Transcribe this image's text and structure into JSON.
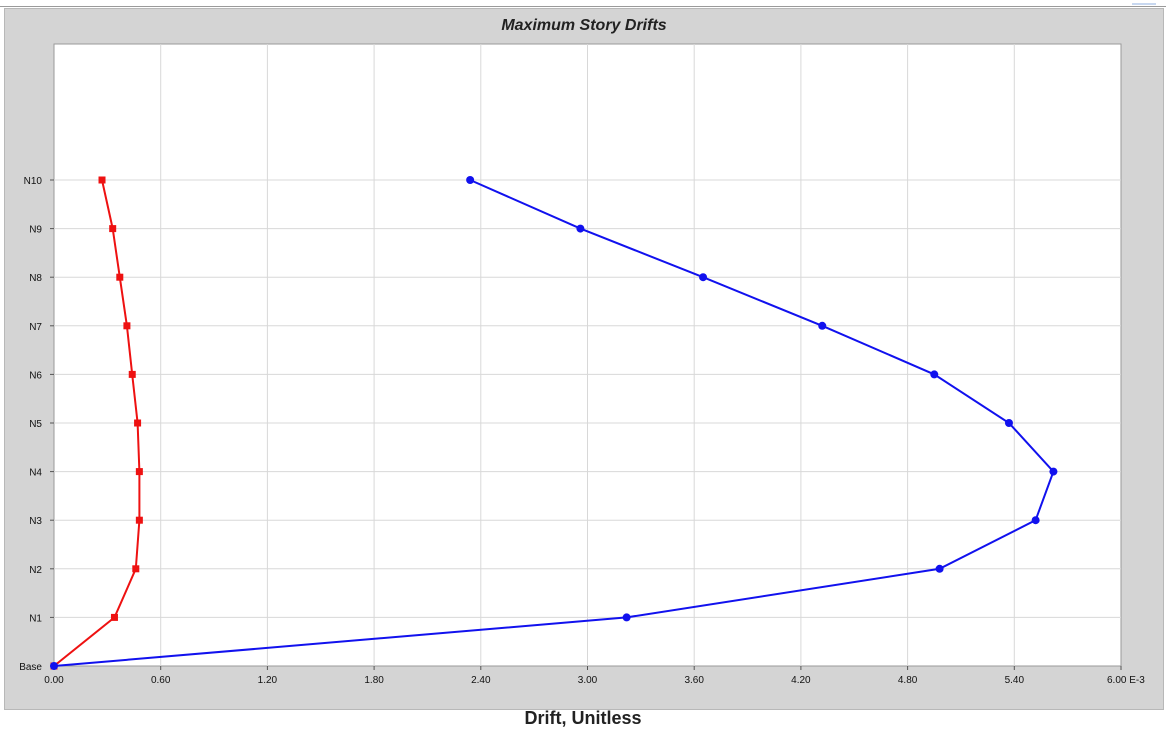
{
  "window": {
    "title": "Maximum Story Drifts"
  },
  "chart_data": {
    "type": "line",
    "title": "Maximum Story Drifts",
    "xlabel": "Drift, Unitless",
    "ylabel": "",
    "x_unit_suffix": "E-3",
    "xlim": [
      0,
      6.0
    ],
    "x_ticks": [
      "0.00",
      "0.60",
      "1.20",
      "1.80",
      "2.40",
      "3.00",
      "3.60",
      "4.20",
      "4.80",
      "5.40",
      "6.00 E-3"
    ],
    "categories": [
      "Base",
      "N1",
      "N2",
      "N3",
      "N4",
      "N5",
      "N6",
      "N7",
      "N8",
      "N9",
      "N10"
    ],
    "grid": true,
    "series": [
      {
        "color": "#ee1111",
        "marker": "square",
        "values": [
          0.0,
          0.34,
          0.46,
          0.48,
          0.48,
          0.47,
          0.44,
          0.41,
          0.37,
          0.33,
          0.27
        ]
      },
      {
        "color": "#1111ee",
        "marker": "circle",
        "values": [
          0.0,
          3.22,
          4.98,
          5.52,
          5.62,
          5.37,
          4.95,
          4.32,
          3.65,
          2.96,
          2.34
        ]
      }
    ]
  }
}
